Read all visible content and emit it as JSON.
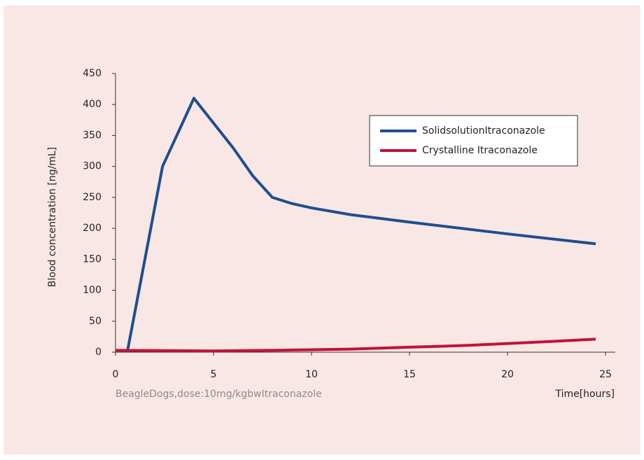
{
  "chart_data": {
    "type": "line",
    "y_label": "Blood concentration [ng/mL]",
    "x_label": "Time[hours]",
    "note": "BeagleDogs,dose:10mg/kgbwItraconazole",
    "xlim": [
      0,
      25.5
    ],
    "xticks": [
      0,
      5,
      10,
      15,
      20,
      25
    ],
    "ylim": [
      0,
      450
    ],
    "yticks": [
      0,
      50,
      100,
      150,
      200,
      250,
      300,
      350,
      400,
      450
    ],
    "legend": "upper right",
    "series": [
      {
        "name": "SolidsolutionItraconazole",
        "color": "#1f4e91",
        "x": [
          0.6,
          2.4,
          4,
          5,
          6,
          7,
          8,
          9,
          10,
          12,
          15,
          20,
          24.5
        ],
        "values": [
          0,
          300,
          410,
          370,
          330,
          285,
          250,
          240,
          233,
          222,
          210,
          191,
          175
        ]
      },
      {
        "name": "Crystalline Itraconazole",
        "color": "#c0133a",
        "x": [
          0,
          5,
          8,
          10,
          12,
          15,
          18,
          20,
          22,
          24.5
        ],
        "values": [
          3,
          2,
          3,
          4,
          5,
          8,
          11,
          14,
          17,
          21
        ]
      }
    ]
  }
}
